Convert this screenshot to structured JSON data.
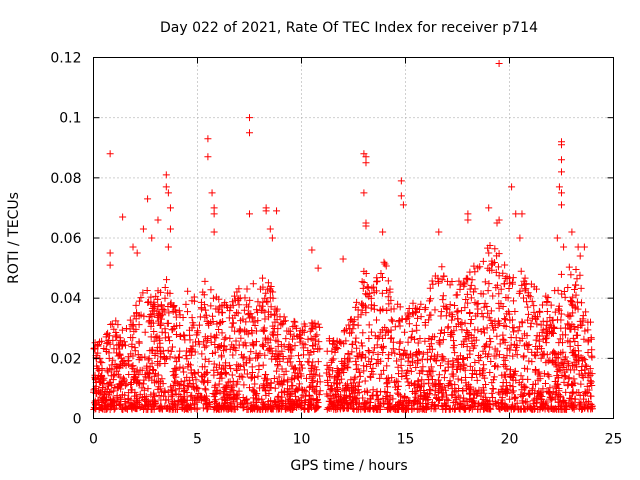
{
  "chart_data": {
    "type": "scatter",
    "title": "Day 022 of 2021, Rate Of TEC Index for receiver p714",
    "xlabel": "GPS time / hours",
    "ylabel": "ROTI / TECUs",
    "xlim": [
      0,
      25
    ],
    "ylim": [
      0,
      0.12
    ],
    "xticks": [
      "0",
      "5",
      "10",
      "15",
      "20",
      "25"
    ],
    "yticks": [
      "0",
      "0.02",
      "0.04",
      "0.06",
      "0.08",
      "0.1",
      "0.12"
    ],
    "grid": true,
    "marker": "+",
    "color": "#ff0000",
    "series": [
      {
        "name": "ROTI",
        "points": [
          [
            0.8,
            0.088
          ],
          [
            0.8,
            0.055
          ],
          [
            0.8,
            0.051
          ],
          [
            1.4,
            0.067
          ],
          [
            1.9,
            0.057
          ],
          [
            2.1,
            0.055
          ],
          [
            2.4,
            0.063
          ],
          [
            2.6,
            0.073
          ],
          [
            2.8,
            0.06
          ],
          [
            3.1,
            0.066
          ],
          [
            3.5,
            0.081
          ],
          [
            3.5,
            0.077
          ],
          [
            3.6,
            0.075
          ],
          [
            3.7,
            0.07
          ],
          [
            3.7,
            0.063
          ],
          [
            3.6,
            0.057
          ],
          [
            5.5,
            0.093
          ],
          [
            5.5,
            0.087
          ],
          [
            5.7,
            0.075
          ],
          [
            5.8,
            0.07
          ],
          [
            5.8,
            0.068
          ],
          [
            5.8,
            0.062
          ],
          [
            7.5,
            0.1
          ],
          [
            7.5,
            0.095
          ],
          [
            7.5,
            0.068
          ],
          [
            8.3,
            0.07
          ],
          [
            8.3,
            0.069
          ],
          [
            8.8,
            0.069
          ],
          [
            8.5,
            0.063
          ],
          [
            8.6,
            0.06
          ],
          [
            10.5,
            0.056
          ],
          [
            10.8,
            0.05
          ],
          [
            12.0,
            0.053
          ],
          [
            13.0,
            0.088
          ],
          [
            13.1,
            0.087
          ],
          [
            13.1,
            0.085
          ],
          [
            13.0,
            0.075
          ],
          [
            13.1,
            0.065
          ],
          [
            13.1,
            0.064
          ],
          [
            13.9,
            0.062
          ],
          [
            14.8,
            0.079
          ],
          [
            14.8,
            0.074
          ],
          [
            14.9,
            0.071
          ],
          [
            16.6,
            0.062
          ],
          [
            18.0,
            0.068
          ],
          [
            18.0,
            0.066
          ],
          [
            19.0,
            0.07
          ],
          [
            19.4,
            0.065
          ],
          [
            19.5,
            0.118
          ],
          [
            19.5,
            0.066
          ],
          [
            20.1,
            0.077
          ],
          [
            20.3,
            0.068
          ],
          [
            20.6,
            0.068
          ],
          [
            20.5,
            0.06
          ],
          [
            22.5,
            0.092
          ],
          [
            22.5,
            0.091
          ],
          [
            22.5,
            0.086
          ],
          [
            22.5,
            0.082
          ],
          [
            22.4,
            0.077
          ],
          [
            22.5,
            0.075
          ],
          [
            22.5,
            0.071
          ],
          [
            22.3,
            0.06
          ],
          [
            22.6,
            0.057
          ],
          [
            23.0,
            0.062
          ],
          [
            23.3,
            0.057
          ],
          [
            23.6,
            0.057
          ],
          [
            23.4,
            0.054
          ]
        ],
        "dense_band": {
          "description": "dense cloud of measurements between 0 and 24 hours, mostly 0.003–0.035 TECUs, with gaps near 10.9–11.2 h",
          "x_range": [
            0,
            24
          ],
          "gaps": [
            [
              10.9,
              11.2
            ]
          ],
          "y_floor": 0.003,
          "envelope": [
            [
              0.0,
              0.026
            ],
            [
              0.5,
              0.028
            ],
            [
              1.0,
              0.033
            ],
            [
              1.5,
              0.03
            ],
            [
              2.0,
              0.038
            ],
            [
              2.5,
              0.045
            ],
            [
              3.0,
              0.042
            ],
            [
              3.5,
              0.05
            ],
            [
              4.0,
              0.035
            ],
            [
              4.5,
              0.045
            ],
            [
              5.0,
              0.042
            ],
            [
              5.5,
              0.048
            ],
            [
              6.0,
              0.04
            ],
            [
              6.5,
              0.038
            ],
            [
              7.0,
              0.046
            ],
            [
              7.5,
              0.044
            ],
            [
              8.0,
              0.048
            ],
            [
              8.5,
              0.046
            ],
            [
              9.0,
              0.035
            ],
            [
              9.5,
              0.034
            ],
            [
              10.0,
              0.032
            ],
            [
              10.8,
              0.034
            ],
            [
              11.2,
              0.028
            ],
            [
              11.5,
              0.026
            ],
            [
              12.0,
              0.03
            ],
            [
              12.5,
              0.034
            ],
            [
              13.0,
              0.05
            ],
            [
              13.5,
              0.045
            ],
            [
              14.0,
              0.055
            ],
            [
              14.5,
              0.04
            ],
            [
              15.0,
              0.035
            ],
            [
              15.5,
              0.04
            ],
            [
              16.0,
              0.048
            ],
            [
              16.5,
              0.055
            ],
            [
              17.0,
              0.05
            ],
            [
              17.5,
              0.045
            ],
            [
              18.0,
              0.05
            ],
            [
              18.5,
              0.052
            ],
            [
              19.0,
              0.058
            ],
            [
              19.5,
              0.056
            ],
            [
              20.0,
              0.048
            ],
            [
              20.5,
              0.05
            ],
            [
              21.0,
              0.045
            ],
            [
              21.5,
              0.042
            ],
            [
              22.0,
              0.04
            ],
            [
              22.5,
              0.05
            ],
            [
              23.0,
              0.052
            ],
            [
              23.5,
              0.048
            ],
            [
              24.0,
              0.03
            ]
          ]
        }
      }
    ]
  }
}
